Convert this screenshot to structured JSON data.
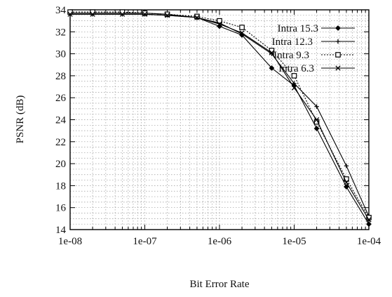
{
  "chart_data": {
    "type": "line",
    "xlabel": "Bit Error Rate",
    "ylabel": "PSNR (dB)",
    "xscale": "log",
    "xlim": [
      1e-08,
      0.0001
    ],
    "ylim": [
      14,
      34
    ],
    "grid": true,
    "legend_position": "top-right",
    "x_tick_labels": [
      "1e-08",
      "1e-07",
      "1e-06",
      "1e-05",
      "1e-04"
    ],
    "y_tick_labels": [
      "14",
      "16",
      "18",
      "20",
      "22",
      "24",
      "26",
      "28",
      "30",
      "32",
      "34"
    ],
    "x": [
      1e-08,
      2e-08,
      5e-08,
      1e-07,
      2e-07,
      5e-07,
      1e-06,
      2e-06,
      5e-06,
      1e-05,
      2e-05,
      5e-05,
      0.0001
    ],
    "series": [
      {
        "name": "Intra 15.3",
        "marker": "diamond",
        "dash": "solid",
        "values": [
          33.7,
          33.7,
          33.7,
          33.7,
          33.6,
          33.3,
          32.5,
          31.7,
          28.7,
          27.1,
          23.2,
          17.9,
          14.5
        ]
      },
      {
        "name": "Intra 12.3",
        "marker": "plus",
        "dash": "solid",
        "values": [
          33.6,
          33.6,
          33.6,
          33.6,
          33.5,
          33.3,
          32.8,
          31.8,
          30.0,
          27.3,
          25.2,
          19.8,
          15.2
        ]
      },
      {
        "name": "Intra 9.3",
        "marker": "square",
        "dash": "dotted",
        "values": [
          33.8,
          33.8,
          33.8,
          33.7,
          33.6,
          33.4,
          33.0,
          32.4,
          30.3,
          28.0,
          23.8,
          18.6,
          15.1
        ]
      },
      {
        "name": "Intra 6.3",
        "marker": "cross",
        "dash": "solid",
        "values": [
          33.6,
          33.6,
          33.6,
          33.6,
          33.5,
          33.3,
          32.7,
          31.9,
          30.1,
          26.9,
          24.0,
          18.3,
          14.9
        ]
      }
    ]
  }
}
